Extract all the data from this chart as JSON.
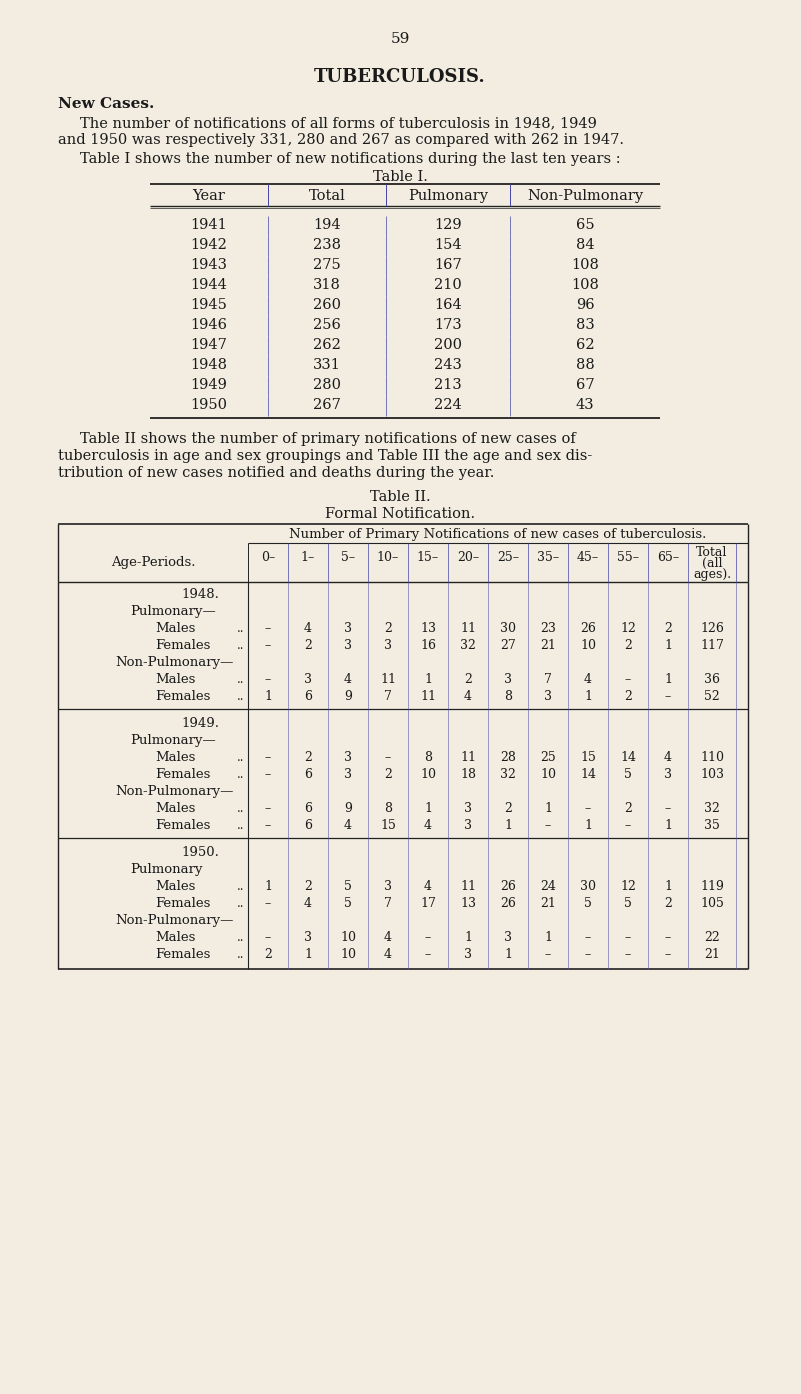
{
  "page_number": "59",
  "title": "TUBERCULOSIS.",
  "section_title": "New Cases.",
  "intro_line1": "The number of notifications of all forms of tuberculosis in 1948, 1949",
  "intro_line2": "and 1950 was respectively 331, 280 and 267 as compared with 262 in 1947.",
  "intro_line3": "Table I shows the number of new notifications during the last ten years :",
  "table1_title": "Table I.",
  "table1_headers": [
    "Year",
    "Total",
    "Pulmonary",
    "Non-Pulmonary"
  ],
  "table1_data": [
    [
      "1941",
      "194",
      "129",
      "65"
    ],
    [
      "1942",
      "238",
      "154",
      "84"
    ],
    [
      "1943",
      "275",
      "167",
      "108"
    ],
    [
      "1944",
      "318",
      "210",
      "108"
    ],
    [
      "1945",
      "260",
      "164",
      "96"
    ],
    [
      "1946",
      "256",
      "173",
      "83"
    ],
    [
      "1947",
      "262",
      "200",
      "62"
    ],
    [
      "1948",
      "331",
      "243",
      "88"
    ],
    [
      "1949",
      "280",
      "213",
      "67"
    ],
    [
      "1950",
      "267",
      "224",
      "43"
    ]
  ],
  "between_line1": "Table II shows the number of primary notifications of new cases of",
  "between_line2": "tuberculosis in age and sex groupings and Table III the age and sex dis-",
  "between_line3": "tribution of new cases notified and deaths during the year.",
  "table2_title": "Table II.",
  "table2_subtitle": "Formal Notification.",
  "table2_span_header": "Number of Primary Notifications of new cases of tuberculosis.",
  "age_labels": [
    "0–",
    "1–",
    "5–",
    "10–",
    "15–",
    "20–",
    "25–",
    "35–",
    "45–",
    "55–",
    "65–"
  ],
  "table2_sections": [
    {
      "year": "1948.",
      "pulmonary_label": "Pulmonary—",
      "non_pulmonary_label": "Non-Pulmonary—",
      "pul_m": [
        "–",
        "4",
        "3",
        "2",
        "13",
        "11",
        "30",
        "23",
        "26",
        "12",
        "2",
        "126"
      ],
      "pul_f": [
        "–",
        "2",
        "3",
        "3",
        "16",
        "32",
        "27",
        "21",
        "10",
        "2",
        "1",
        "117"
      ],
      "npul_m": [
        "–",
        "3",
        "4",
        "11",
        "1",
        "2",
        "3",
        "7",
        "4",
        "–",
        "1",
        "36"
      ],
      "npul_f": [
        "1",
        "6",
        "9",
        "7",
        "11",
        "4",
        "8",
        "3",
        "1",
        "2",
        "–",
        "52"
      ]
    },
    {
      "year": "1949.",
      "pulmonary_label": "Pulmonary—",
      "non_pulmonary_label": "Non-Pulmonary—",
      "pul_m": [
        "–",
        "2",
        "3",
        "–",
        "8",
        "11",
        "28",
        "25",
        "15",
        "14",
        "4",
        "110"
      ],
      "pul_f": [
        "–",
        "6",
        "3",
        "2",
        "10",
        "18",
        "32",
        "10",
        "14",
        "5",
        "3",
        "103"
      ],
      "npul_m": [
        "–",
        "6",
        "9",
        "8",
        "1",
        "3",
        "2",
        "1",
        "–",
        "2",
        "–",
        "32"
      ],
      "npul_f": [
        "–",
        "6",
        "4",
        "15",
        "4",
        "3",
        "1",
        "–",
        "1",
        "–",
        "1",
        "35"
      ]
    },
    {
      "year": "1950.",
      "pulmonary_label": "Pulmonary",
      "non_pulmonary_label": "Non-Pulmonary—",
      "pul_m": [
        "1",
        "2",
        "5",
        "3",
        "4",
        "11",
        "26",
        "24",
        "30",
        "12",
        "1",
        "119"
      ],
      "pul_f": [
        "–",
        "4",
        "5",
        "7",
        "17",
        "13",
        "26",
        "21",
        "5",
        "5",
        "2",
        "105"
      ],
      "npul_m": [
        "–",
        "3",
        "10",
        "4",
        "–",
        "1",
        "3",
        "1",
        "–",
        "–",
        "–",
        "22"
      ],
      "npul_f": [
        "2",
        "1",
        "10",
        "4",
        "–",
        "3",
        "1",
        "–",
        "–",
        "–",
        "–",
        "21"
      ]
    }
  ],
  "bg_color": "#f2ede0",
  "text_color": "#1a1a1a",
  "line_color": "#222222"
}
